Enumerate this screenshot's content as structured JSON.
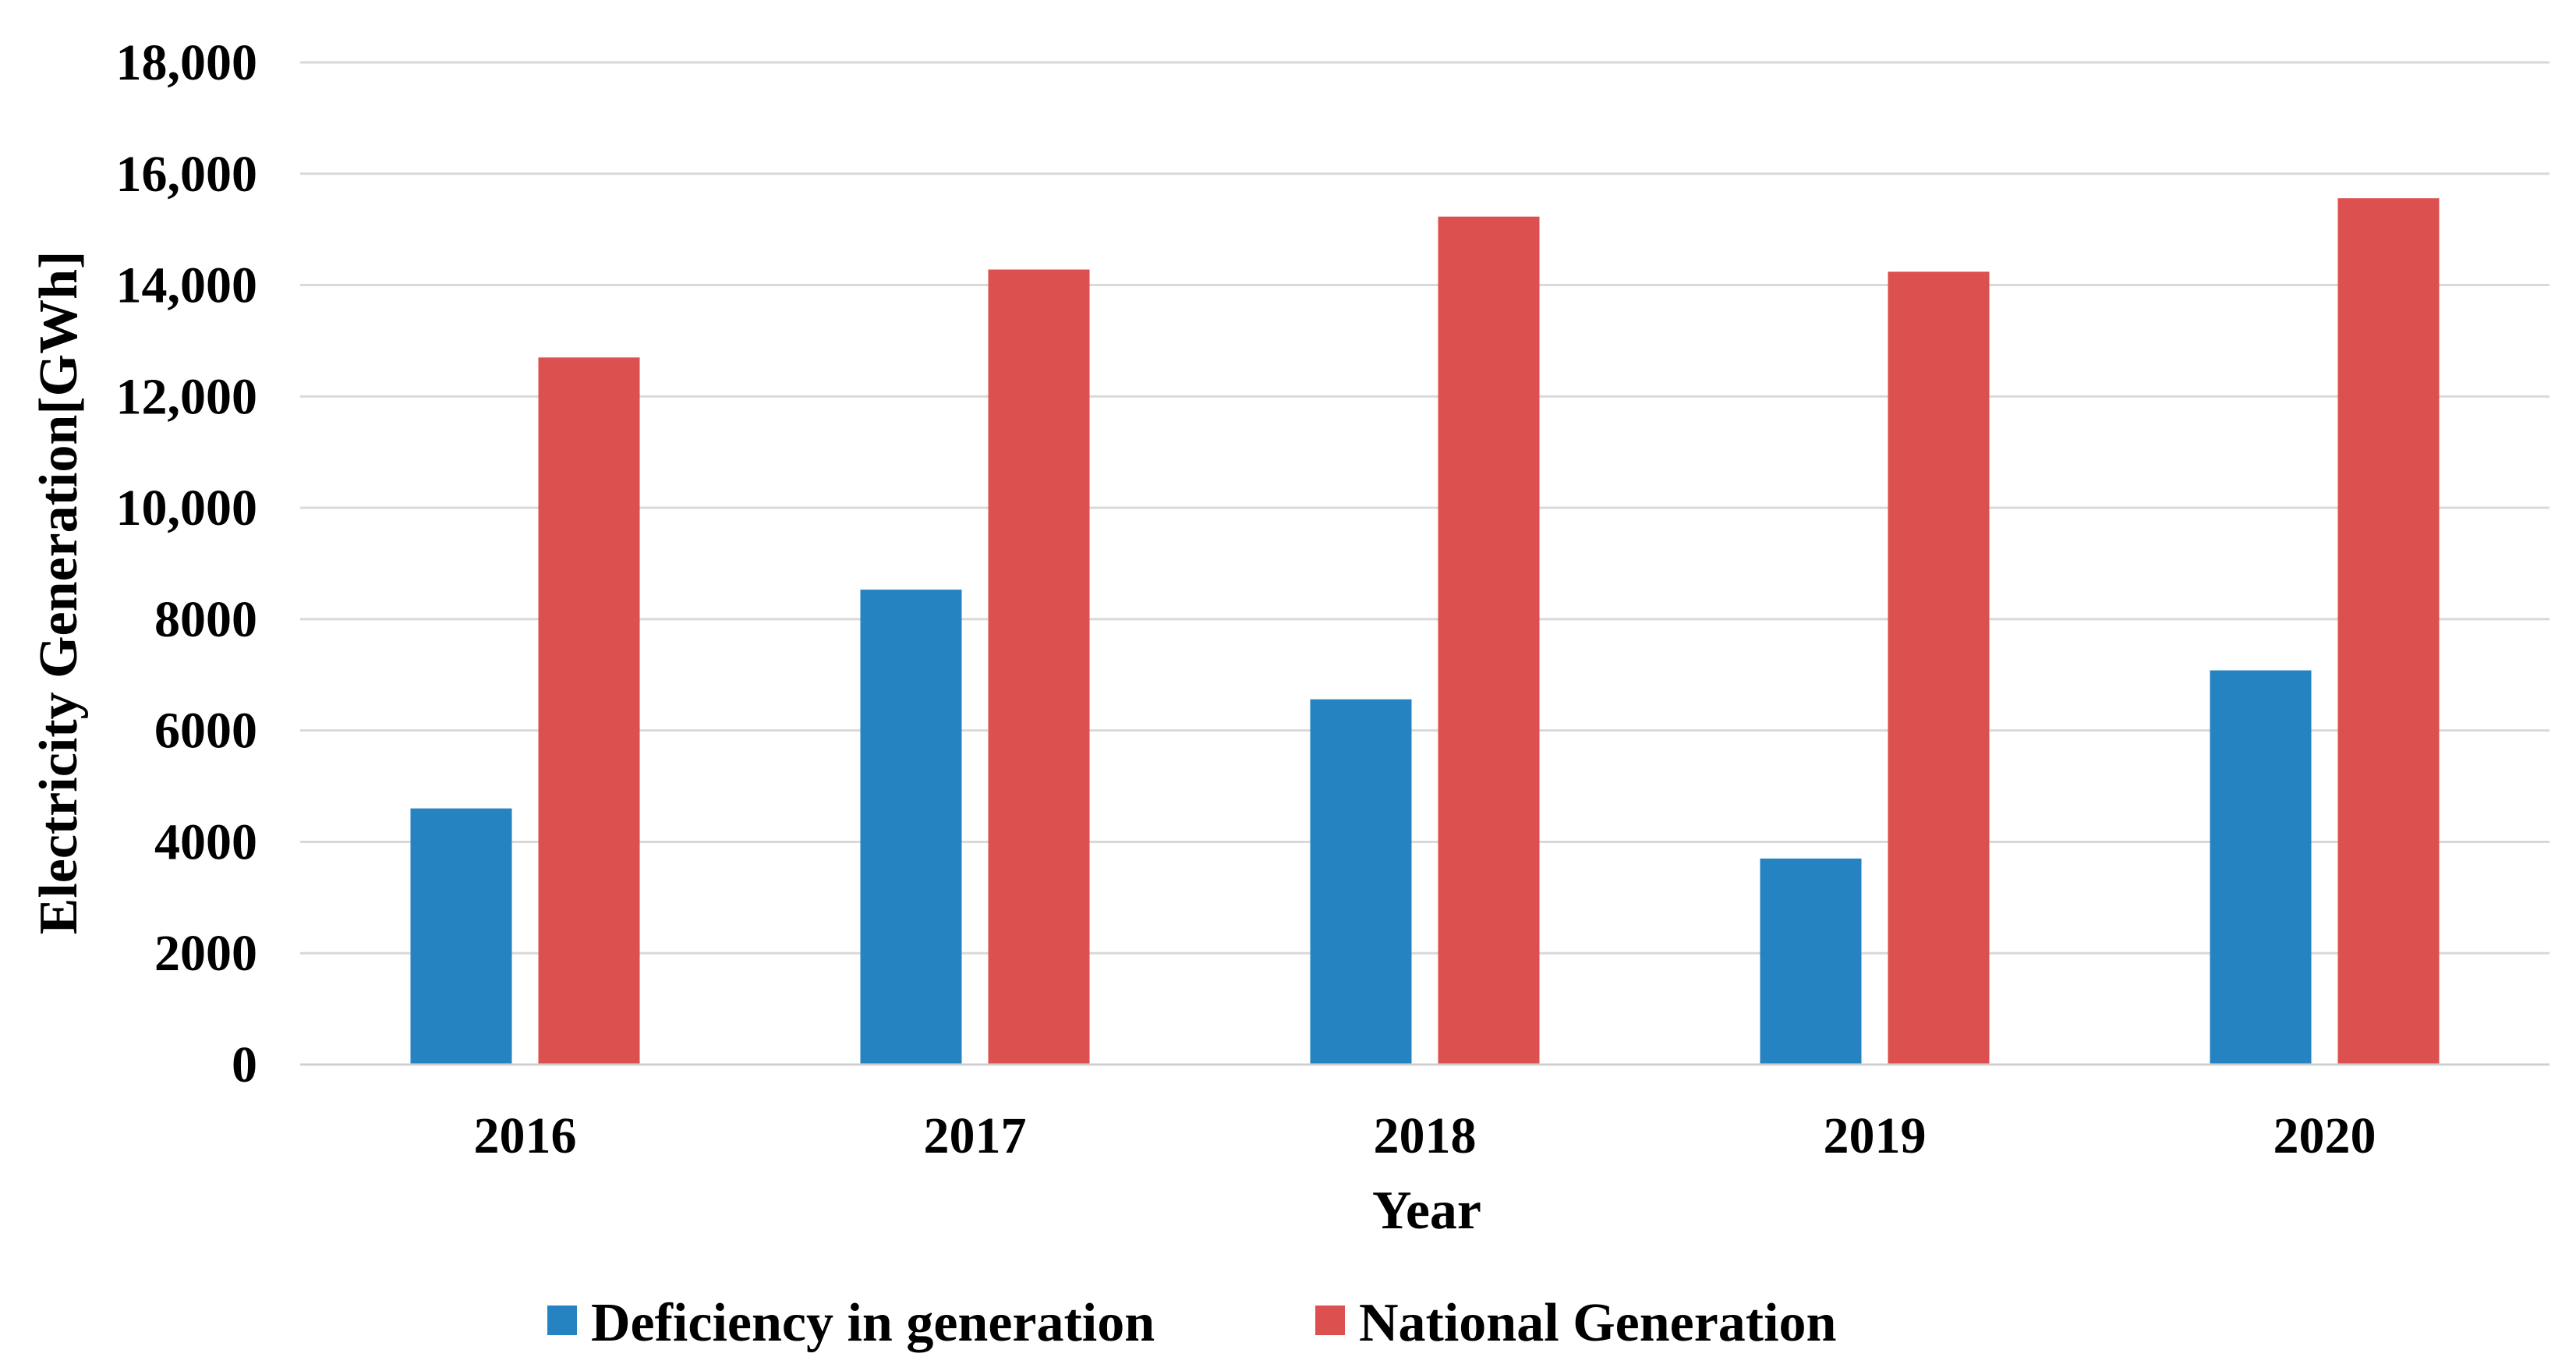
{
  "chart_data": {
    "type": "bar",
    "title": "",
    "xlabel": "Year",
    "ylabel": "Electricity Generation[GWh]",
    "categories": [
      "2016",
      "2017",
      "2018",
      "2019",
      "2020"
    ],
    "series": [
      {
        "name": "Deficiency in generation",
        "color": "#2683C1",
        "values": [
          4600,
          8530,
          6560,
          3700,
          7080
        ]
      },
      {
        "name": "National Generation",
        "color": "#DC504F",
        "values": [
          12700,
          14280,
          15230,
          14240,
          15560
        ]
      }
    ],
    "ylim": [
      0,
      18000
    ],
    "yticks": [
      0,
      2000,
      4000,
      6000,
      8000,
      10000,
      12000,
      14000,
      16000,
      18000
    ],
    "ytick_labels": [
      "0",
      "2000",
      "4000",
      "6000",
      "8000",
      "10,000",
      "12,000",
      "14,000",
      "16,000",
      "18,000"
    ],
    "grid": true,
    "legend_position": "bottom"
  }
}
